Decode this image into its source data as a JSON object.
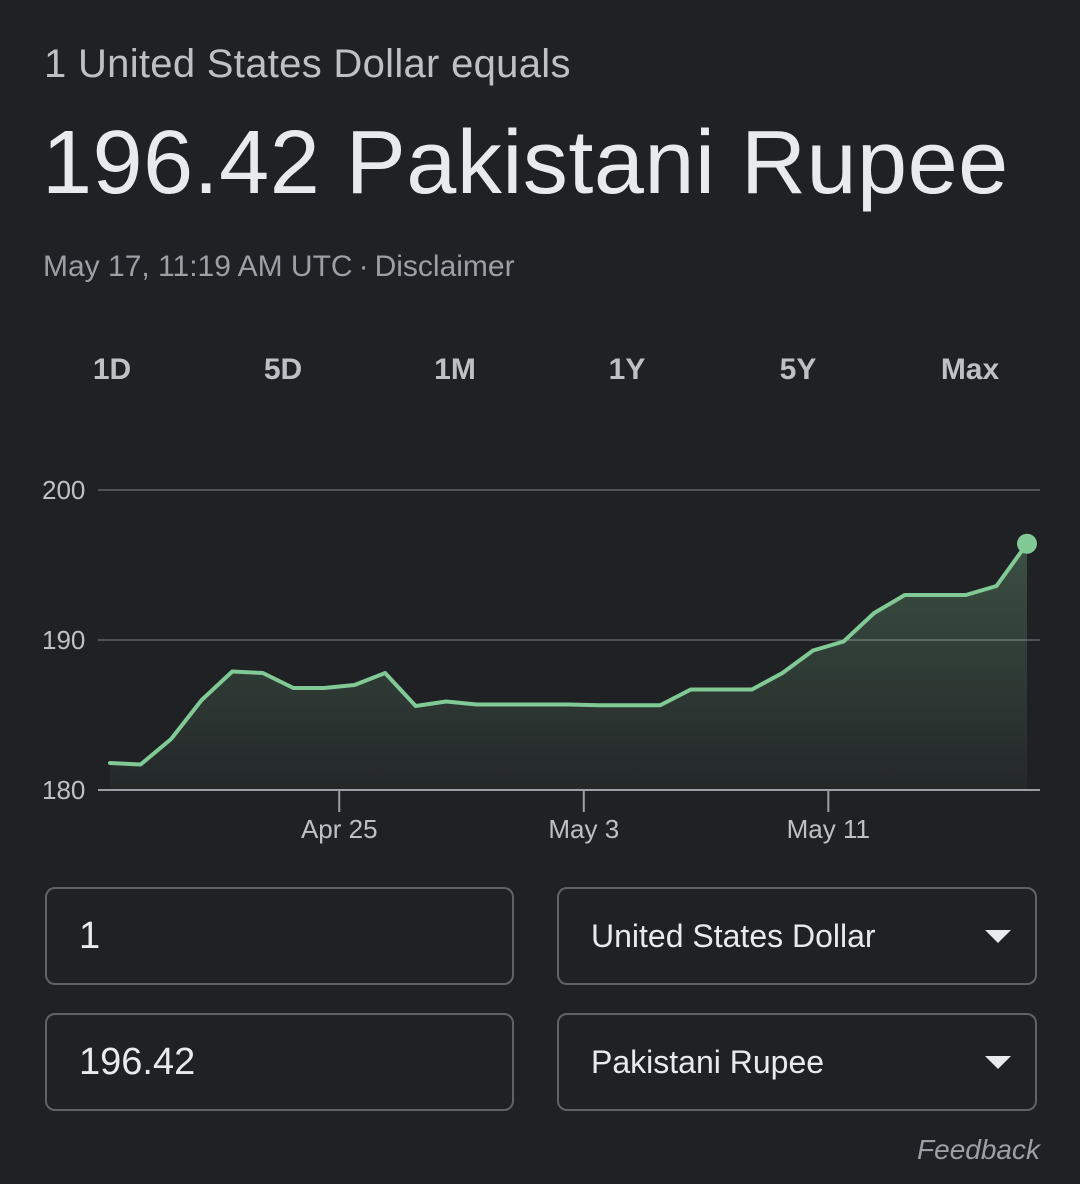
{
  "header": {
    "subtitle": "1 United States Dollar equals",
    "value": "196.42 Pakistani Rupee",
    "timestamp": "May 17, 11:19 AM UTC",
    "separator": "·",
    "disclaimer": "Disclaimer"
  },
  "ranges": [
    {
      "label": "1D",
      "active": false
    },
    {
      "label": "5D",
      "active": false
    },
    {
      "label": "1M",
      "active": true
    },
    {
      "label": "1Y",
      "active": false
    },
    {
      "label": "5Y",
      "active": false
    },
    {
      "label": "Max",
      "active": false
    }
  ],
  "chart_data": {
    "type": "area",
    "title": "",
    "xlabel": "",
    "ylabel": "",
    "ylim": [
      180,
      200
    ],
    "yticks": [
      180,
      190,
      200
    ],
    "x_tick_labels": [
      "Apr 25",
      "May 3",
      "May 11"
    ],
    "x_tick_indices": [
      7.5,
      15.5,
      23.5
    ],
    "grid": true,
    "colors": {
      "line": "#81c995",
      "fill": "#81c995",
      "grid": "#5f6368",
      "axis": "#9aa0a6"
    },
    "series": [
      {
        "values": [
          181.8,
          181.7,
          183.4,
          186.0,
          187.9,
          187.8,
          186.8,
          186.8,
          187.0,
          187.8,
          185.6,
          185.9,
          185.7,
          185.7,
          185.7,
          185.7,
          185.65,
          185.65,
          185.65,
          186.7,
          186.7,
          186.7,
          187.8,
          189.3,
          189.9,
          191.8,
          193.0,
          193.0,
          193.0,
          193.6,
          196.42
        ]
      }
    ]
  },
  "converter": {
    "amount_from": "1",
    "amount_to": "196.42",
    "currency_from": "United States Dollar",
    "currency_to": "Pakistani Rupee"
  },
  "footer": {
    "feedback": "Feedback"
  }
}
